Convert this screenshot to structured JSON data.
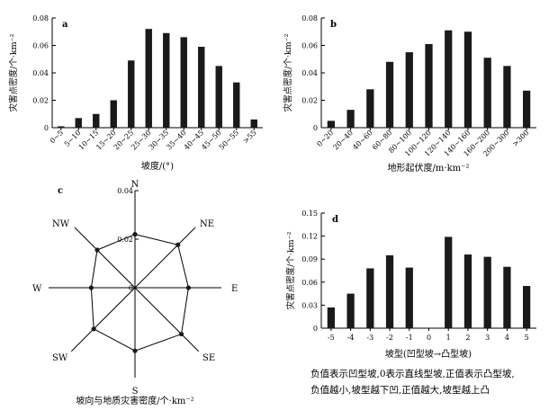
{
  "chart_data": [
    {
      "id": "a",
      "type": "bar",
      "panel_label": "a",
      "xlabel": "坡度/(°)",
      "ylabel": "灾害点密度/个·km⁻²",
      "categories": [
        "0~5",
        "5~10",
        "10~15",
        "15~20",
        "20~25",
        "25~30",
        "30~35",
        "35~40",
        "40~45",
        "45~50",
        "50~55",
        ">55"
      ],
      "values": [
        0.001,
        0.007,
        0.01,
        0.02,
        0.049,
        0.072,
        0.069,
        0.066,
        0.059,
        0.045,
        0.033,
        0.006
      ],
      "ylim": [
        0,
        0.08
      ],
      "yticks": [
        "0",
        "0.02",
        "0.04",
        "0.06",
        "0.08"
      ],
      "grid": false
    },
    {
      "id": "b",
      "type": "bar",
      "panel_label": "b",
      "xlabel": "地形起伏度/m·km⁻²",
      "ylabel": "灾害点密度/个·km⁻²",
      "categories": [
        "0~20",
        "20~40",
        "40~60",
        "60~80",
        "80~100",
        "100~120",
        "120~140",
        "140~160",
        "160~200",
        "200~300",
        ">300"
      ],
      "values": [
        0.005,
        0.013,
        0.028,
        0.048,
        0.055,
        0.061,
        0.071,
        0.07,
        0.051,
        0.045,
        0.027
      ],
      "ylim": [
        0,
        0.08
      ],
      "yticks": [
        "0",
        "0.02",
        "0.04",
        "0.06",
        "0.08"
      ],
      "grid": false
    },
    {
      "id": "c",
      "type": "radar",
      "panel_label": "c",
      "xlabel": "坡向与地质灾害密度/个·km⁻²",
      "directions": [
        "N",
        "NE",
        "E",
        "SE",
        "S",
        "SW",
        "W",
        "NW"
      ],
      "values": [
        0.022,
        0.025,
        0.022,
        0.027,
        0.026,
        0.024,
        0.018,
        0.022
      ],
      "rlim": [
        0,
        0.04
      ],
      "rticks": [
        "0",
        "0.02",
        "0.04"
      ]
    },
    {
      "id": "d",
      "type": "bar",
      "panel_label": "d",
      "xlabel": "坡型(凹型坡→凸型坡)",
      "ylabel": "灾害点密度/个·km⁻²",
      "categories": [
        "-5",
        "-4",
        "-3",
        "-2",
        "-1",
        "0",
        "1",
        "2",
        "3",
        "4",
        "5"
      ],
      "values": [
        0.027,
        0.045,
        0.078,
        0.095,
        0.079,
        0.0,
        0.119,
        0.096,
        0.093,
        0.08,
        0.055
      ],
      "ylim": [
        0,
        0.15
      ],
      "yticks": [
        "0",
        "0.03",
        "0.06",
        "0.09",
        "0.12",
        "0.15"
      ],
      "grid": false
    }
  ],
  "note": {
    "line1": "负值表示凹型坡,0表示直线型坡,正值表示凸型坡,",
    "line2": "负值越小,坡型越下凹,正值越大,坡型越上凸"
  },
  "colors": {
    "bar": "#1a1a1a",
    "axis": "#000000",
    "line": "#000000"
  }
}
